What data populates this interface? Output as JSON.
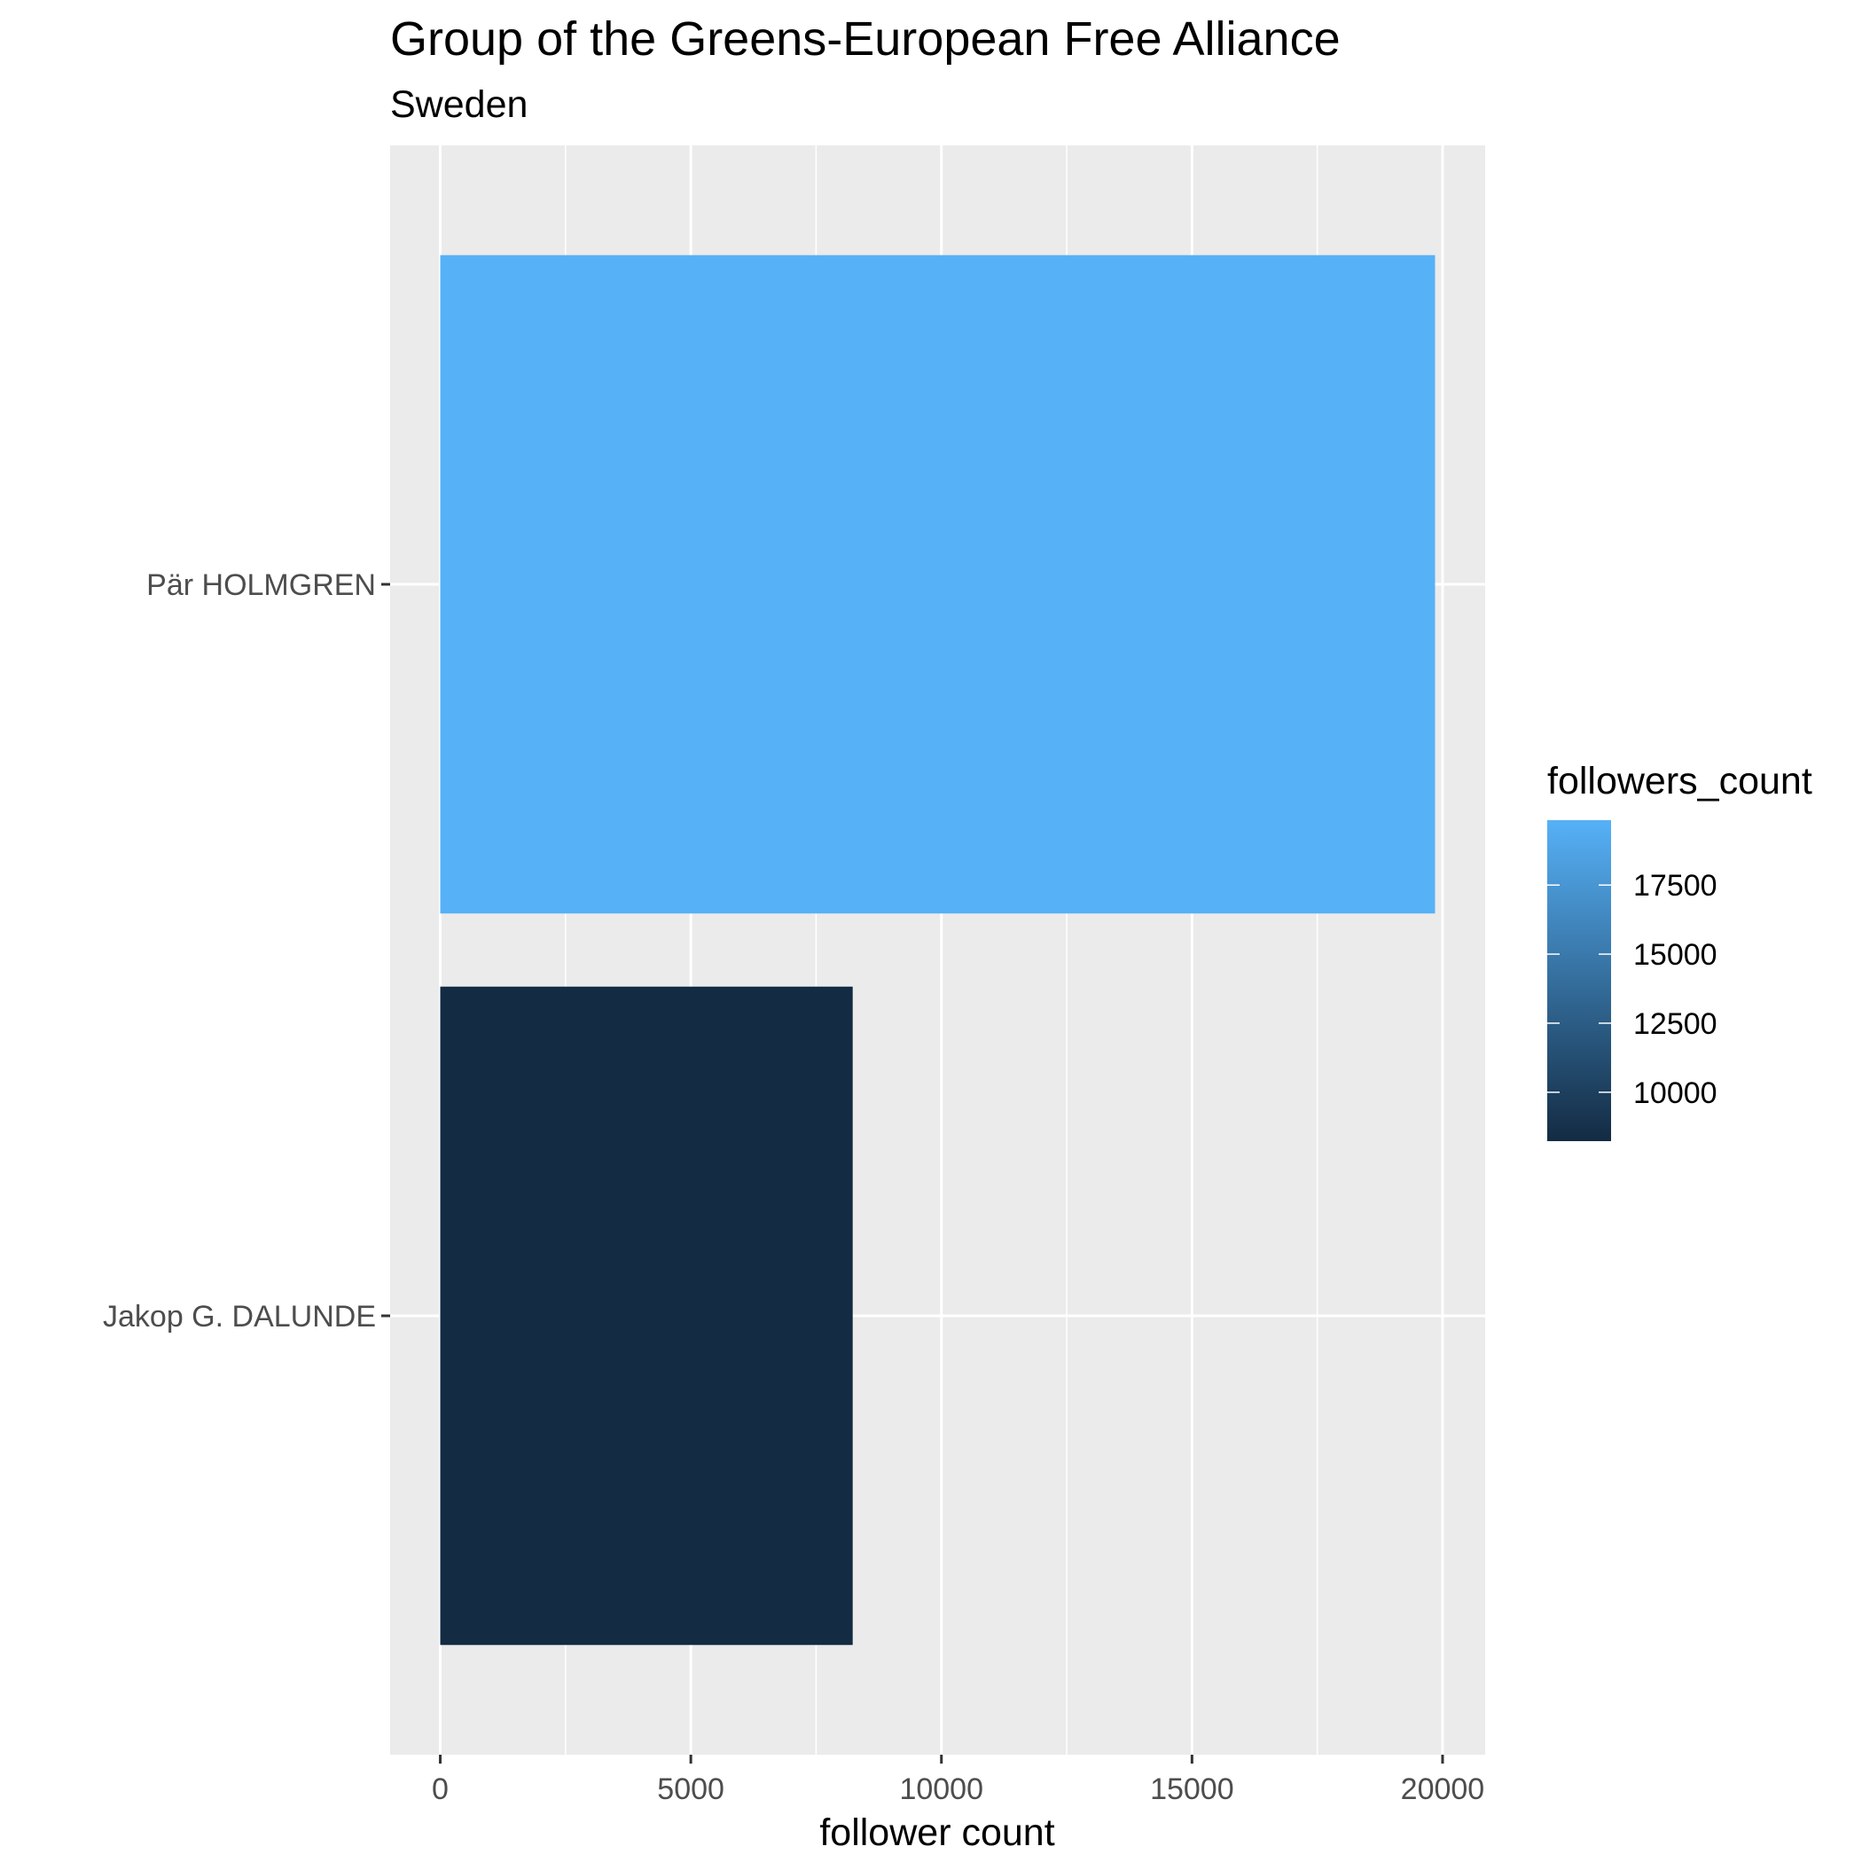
{
  "chart_data": {
    "type": "bar",
    "orientation": "horizontal",
    "title": "Group of the Greens-European Free Alliance",
    "subtitle": "Sweden",
    "xlabel": "follower count",
    "ylabel": "",
    "categories": [
      "Jakop G. DALUNDE",
      "Pär HOLMGREN"
    ],
    "values": [
      8230,
      19850
    ],
    "xlim": [
      -1000,
      20850
    ],
    "x_ticks": [
      0,
      5000,
      10000,
      15000,
      20000
    ],
    "x_tick_labels": [
      "0",
      "5000",
      "10000",
      "15000",
      "20000"
    ],
    "grid": true,
    "legend": {
      "title": "followers_count",
      "position": "right",
      "type": "colorbar",
      "range": [
        8230,
        19850
      ],
      "ticks": [
        10000,
        12500,
        15000,
        17500
      ],
      "tick_labels": [
        "10000",
        "12500",
        "15000",
        "17500"
      ],
      "low_color": "#132b43",
      "high_color": "#56b1f7"
    },
    "colors": {
      "panel_background": "#ebebeb",
      "grid_major": "#ffffff"
    }
  }
}
